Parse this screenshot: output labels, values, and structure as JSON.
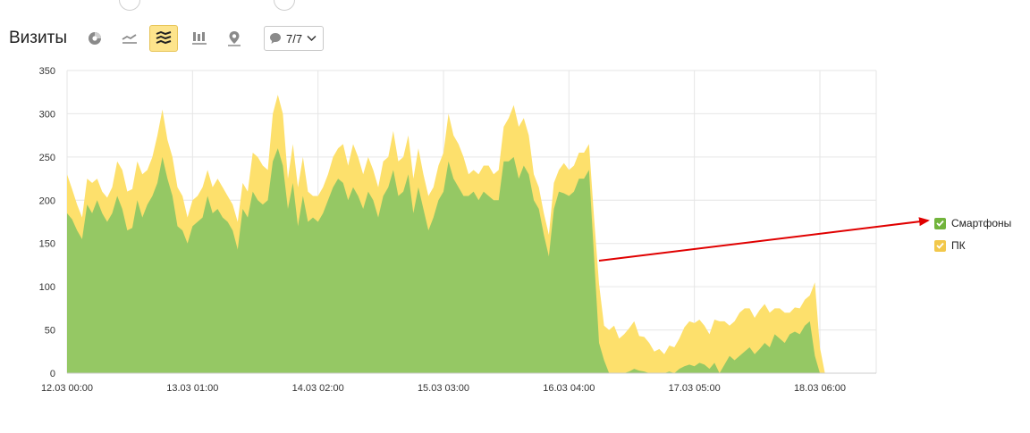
{
  "header": {
    "title": "Визиты",
    "counter_label": "7/7"
  },
  "toolbar": {
    "buttons": [
      {
        "name": "pie-chart-icon",
        "active": false
      },
      {
        "name": "line-chart-icon",
        "active": false
      },
      {
        "name": "stacked-area-icon",
        "active": true
      },
      {
        "name": "bar-chart-icon",
        "active": false
      },
      {
        "name": "map-pin-icon",
        "active": false
      }
    ]
  },
  "colors": {
    "smartphones": "#95c864",
    "pc": "#fde06c",
    "grid": "#e6e6e6",
    "annotation_arrow": "#e00000",
    "legend_smartphones": "#72b43c",
    "legend_pc": "#f2c84b"
  },
  "chart_data": {
    "type": "area",
    "stacked": true,
    "title": "",
    "xlabel": "",
    "ylabel": "",
    "ylim": [
      0,
      350
    ],
    "yticks": [
      0,
      50,
      100,
      150,
      200,
      250,
      300,
      350
    ],
    "ytick_labels": [
      "0",
      "50",
      "100",
      "150",
      "200",
      "250",
      "300",
      "350"
    ],
    "xtick_labels": [
      "12.03 00:00",
      "13.03 01:00",
      "14.03 02:00",
      "15.03 03:00",
      "16.03 04:00",
      "17.03 05:00",
      "18.03 06:00"
    ],
    "xtick_hours": [
      0,
      25,
      50,
      75,
      100,
      125,
      150
    ],
    "x_unit": "hours since 12.03 00:00",
    "legend_position": "right",
    "grid": true,
    "series": [
      {
        "name": "Смартфоны",
        "key": "smartphones",
        "x": [
          0,
          1,
          2,
          3,
          4,
          5,
          6,
          7,
          8,
          9,
          10,
          11,
          12,
          13,
          14,
          15,
          16,
          17,
          18,
          19,
          20,
          21,
          22,
          23,
          24,
          25,
          26,
          27,
          28,
          29,
          30,
          31,
          32,
          33,
          34,
          35,
          36,
          37,
          38,
          39,
          40,
          41,
          42,
          43,
          44,
          45,
          46,
          47,
          48,
          49,
          50,
          51,
          52,
          53,
          54,
          55,
          56,
          57,
          58,
          59,
          60,
          61,
          62,
          63,
          64,
          65,
          66,
          67,
          68,
          69,
          70,
          71,
          72,
          73,
          74,
          75,
          76,
          77,
          78,
          79,
          80,
          81,
          82,
          83,
          84,
          85,
          86,
          87,
          88,
          89,
          90,
          91,
          92,
          93,
          94,
          95,
          96,
          97,
          98,
          99,
          100,
          101,
          102,
          103,
          104,
          105,
          106,
          107,
          108,
          109,
          110,
          111,
          112,
          113,
          114,
          115,
          116,
          117,
          118,
          119,
          120,
          121,
          122,
          123,
          124,
          125,
          126,
          127,
          128,
          129,
          130,
          131,
          132,
          133,
          134,
          135,
          136,
          137,
          138,
          139,
          140,
          141,
          142,
          143,
          144,
          145,
          146,
          147,
          148,
          149,
          150,
          151,
          152,
          153,
          154,
          155,
          156
        ],
        "values": [
          185,
          178,
          165,
          155,
          195,
          185,
          200,
          185,
          175,
          185,
          205,
          190,
          165,
          168,
          200,
          180,
          195,
          205,
          220,
          250,
          225,
          205,
          170,
          165,
          150,
          170,
          175,
          180,
          205,
          185,
          190,
          180,
          175,
          165,
          143,
          190,
          180,
          210,
          200,
          195,
          200,
          245,
          260,
          240,
          190,
          220,
          170,
          205,
          175,
          180,
          175,
          185,
          200,
          215,
          225,
          220,
          200,
          215,
          205,
          190,
          210,
          200,
          180,
          205,
          215,
          235,
          205,
          210,
          230,
          185,
          215,
          190,
          165,
          180,
          200,
          210,
          245,
          225,
          215,
          205,
          205,
          210,
          200,
          210,
          205,
          200,
          200,
          245,
          245,
          250,
          225,
          240,
          230,
          200,
          190,
          160,
          135,
          190,
          210,
          208,
          205,
          210,
          225,
          225,
          235,
          135,
          35,
          15,
          0,
          0,
          0,
          0,
          2,
          5,
          3,
          2,
          0,
          0,
          0,
          0,
          2,
          0,
          5,
          8,
          10,
          8,
          12,
          10,
          5,
          12,
          0,
          10,
          20,
          15,
          20,
          25,
          30,
          22,
          28,
          35,
          30,
          45,
          40,
          35,
          45,
          48,
          45,
          55,
          60,
          20,
          0,
          0,
          0,
          0,
          0,
          0,
          0
        ]
      },
      {
        "name": "ПК",
        "key": "pc",
        "x": [
          0,
          1,
          2,
          3,
          4,
          5,
          6,
          7,
          8,
          9,
          10,
          11,
          12,
          13,
          14,
          15,
          16,
          17,
          18,
          19,
          20,
          21,
          22,
          23,
          24,
          25,
          26,
          27,
          28,
          29,
          30,
          31,
          32,
          33,
          34,
          35,
          36,
          37,
          38,
          39,
          40,
          41,
          42,
          43,
          44,
          45,
          46,
          47,
          48,
          49,
          50,
          51,
          52,
          53,
          54,
          55,
          56,
          57,
          58,
          59,
          60,
          61,
          62,
          63,
          64,
          65,
          66,
          67,
          68,
          69,
          70,
          71,
          72,
          73,
          74,
          75,
          76,
          77,
          78,
          79,
          80,
          81,
          82,
          83,
          84,
          85,
          86,
          87,
          88,
          89,
          90,
          91,
          92,
          93,
          94,
          95,
          96,
          97,
          98,
          99,
          100,
          101,
          102,
          103,
          104,
          105,
          106,
          107,
          108,
          109,
          110,
          111,
          112,
          113,
          114,
          115,
          116,
          117,
          118,
          119,
          120,
          121,
          122,
          123,
          124,
          125,
          126,
          127,
          128,
          129,
          130,
          131,
          132,
          133,
          134,
          135,
          136,
          137,
          138,
          139,
          140,
          141,
          142,
          143,
          144,
          145,
          146,
          147,
          148,
          149,
          150,
          151,
          152,
          153,
          154,
          155,
          156
        ],
        "values": [
          45,
          35,
          30,
          25,
          30,
          35,
          25,
          25,
          28,
          30,
          40,
          45,
          45,
          45,
          45,
          50,
          40,
          45,
          55,
          55,
          45,
          45,
          45,
          40,
          30,
          30,
          30,
          35,
          30,
          30,
          35,
          35,
          30,
          30,
          32,
          30,
          30,
          45,
          50,
          45,
          35,
          55,
          62,
          60,
          35,
          45,
          45,
          45,
          35,
          25,
          30,
          30,
          30,
          35,
          35,
          45,
          40,
          50,
          45,
          40,
          40,
          35,
          35,
          40,
          35,
          45,
          40,
          40,
          45,
          40,
          45,
          40,
          40,
          35,
          40,
          45,
          55,
          50,
          50,
          45,
          25,
          25,
          30,
          30,
          35,
          30,
          35,
          40,
          50,
          60,
          60,
          55,
          45,
          30,
          25,
          25,
          25,
          30,
          25,
          35,
          30,
          30,
          30,
          30,
          30,
          45,
          68,
          40,
          50,
          55,
          40,
          45,
          50,
          55,
          40,
          40,
          35,
          25,
          28,
          22,
          30,
          30,
          35,
          45,
          50,
          50,
          50,
          45,
          40,
          50,
          60,
          50,
          35,
          45,
          50,
          50,
          45,
          42,
          45,
          45,
          40,
          30,
          35,
          35,
          25,
          28,
          30,
          30,
          30,
          85,
          30,
          0,
          0,
          0,
          0,
          0,
          0
        ]
      }
    ],
    "annotation": {
      "type": "arrow",
      "points_to": "legend-smartphones"
    }
  },
  "legend": {
    "items": [
      {
        "label": "Смартфоны",
        "key": "smartphones"
      },
      {
        "label": "ПК",
        "key": "pc"
      }
    ]
  }
}
